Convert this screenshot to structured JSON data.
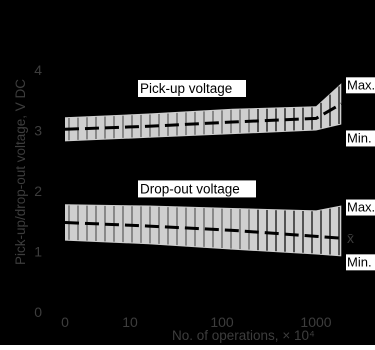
{
  "chart_data": {
    "type": "line",
    "xlabel": "No. of operations, × 10⁴",
    "ylabel": "Pick-up/drop-out voltage, V DC",
    "x_scale": "log-like (0 at origin)",
    "xticks": [
      "0",
      "10",
      "100",
      "1000"
    ],
    "yticks": [
      "0",
      "1",
      "2",
      "3",
      "4"
    ],
    "ylim": [
      0,
      5
    ],
    "grid": false,
    "background": "#000000",
    "band_color": "#cfcfcf",
    "line_color": "#000000",
    "series": [
      {
        "name": "Pick-up voltage",
        "x": [
          1,
          10,
          100,
          1000,
          2000
        ],
        "typical": [
          3.02,
          3.07,
          3.14,
          3.2,
          3.44
        ],
        "upper": [
          3.22,
          3.28,
          3.36,
          3.4,
          3.78
        ],
        "lower": [
          2.82,
          2.88,
          2.94,
          3.0,
          3.1
        ],
        "max_label": "Max.",
        "min_label": "Min."
      },
      {
        "name": "Drop-out voltage",
        "x": [
          1,
          10,
          100,
          1000,
          2000
        ],
        "typical": [
          1.48,
          1.42,
          1.35,
          1.25,
          1.22
        ],
        "upper": [
          1.78,
          1.76,
          1.72,
          1.68,
          1.76
        ],
        "lower": [
          1.18,
          1.12,
          1.03,
          0.95,
          0.92
        ],
        "max_label": "Max.",
        "min_label": "Min.",
        "typ_label": "x̄"
      }
    ]
  }
}
